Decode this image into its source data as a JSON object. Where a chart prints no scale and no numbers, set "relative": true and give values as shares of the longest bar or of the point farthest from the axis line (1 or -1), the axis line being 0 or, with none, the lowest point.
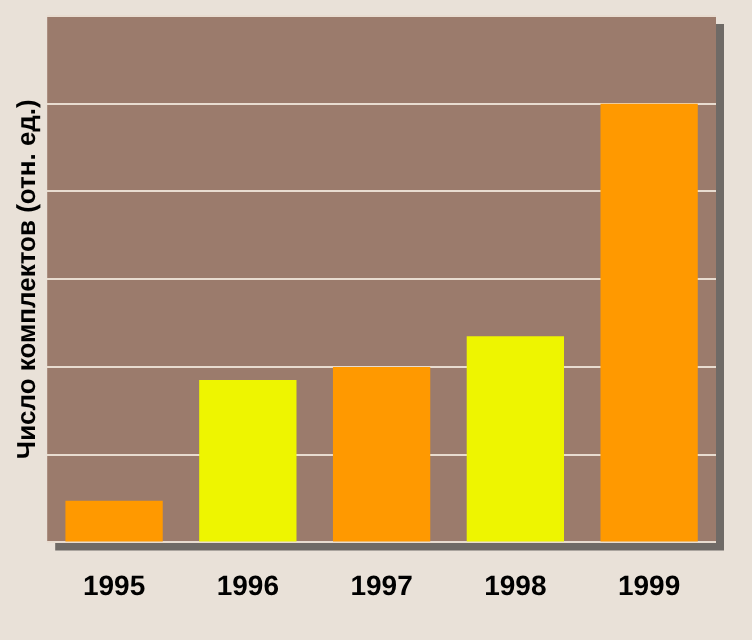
{
  "chart_data": {
    "type": "bar",
    "ylabel": "Число комплектов (отн. ед.)",
    "relative": true,
    "grid": "y",
    "legend": false,
    "categories": [
      "1995",
      "1996",
      "1997",
      "1998",
      "1999"
    ],
    "values": [
      0.095,
      0.37,
      0.4,
      0.47,
      1
    ],
    "colors": [
      "#ff9900",
      "#eef500",
      "#ff9900",
      "#eef500",
      "#ff9900"
    ]
  }
}
